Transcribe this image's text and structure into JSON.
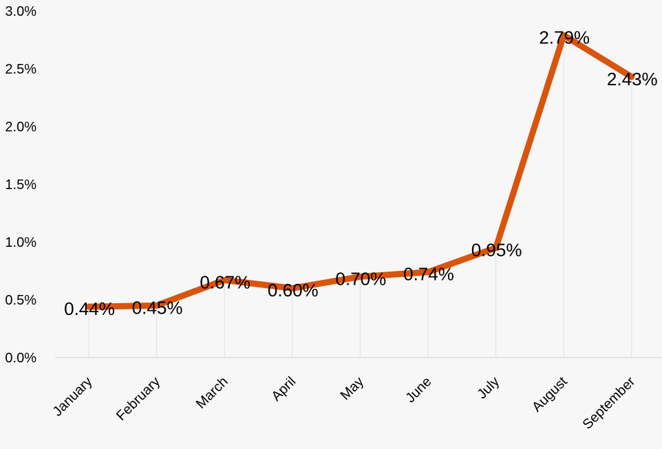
{
  "chart_data": {
    "type": "line",
    "title": "",
    "xlabel": "",
    "ylabel": "",
    "categories": [
      "January",
      "February",
      "March",
      "April",
      "May",
      "June",
      "July",
      "August",
      "September"
    ],
    "series": [
      {
        "values": [
          0.44,
          0.45,
          0.67,
          0.6,
          0.7,
          0.74,
          0.95,
          2.79,
          2.43
        ],
        "labels": [
          "0.44%",
          "0.45%",
          "0.67%",
          "0.60%",
          "0.70%",
          "0.74%",
          "0.95%",
          "2.79%",
          "2.43%"
        ],
        "color": "#d9540c"
      }
    ],
    "ylim": [
      0,
      3.0
    ],
    "yticks": [
      0,
      0.5,
      1.0,
      1.5,
      2.0,
      2.5,
      3.0
    ],
    "ytick_labels": [
      "0.0%",
      "0.5%",
      "1.0%",
      "1.5%",
      "2.0%",
      "2.5%",
      "3.0%"
    ],
    "grid": "vertical drop lines at each category",
    "legend": "none",
    "background": "#f7f7f7"
  }
}
